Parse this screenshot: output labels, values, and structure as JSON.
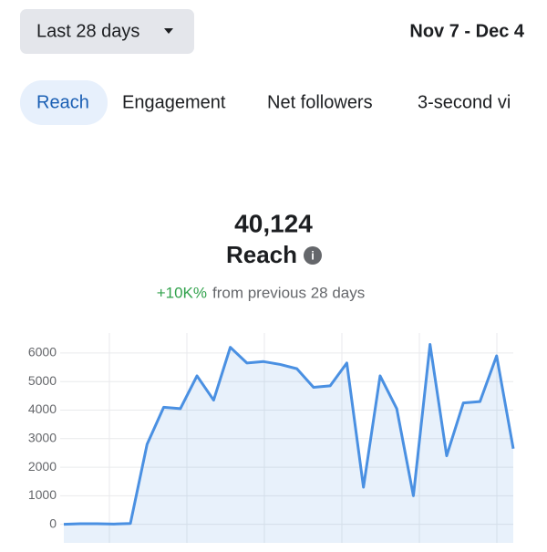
{
  "header": {
    "range_button": "Last 28 days",
    "date_range": "Nov 7 - Dec 4"
  },
  "tabs": [
    "Reach",
    "Engagement",
    "Net followers",
    "3-second vi"
  ],
  "summary": {
    "total": "40,124",
    "metric": "Reach",
    "change": "+10K%",
    "comparison": "from previous 28 days"
  },
  "chart_data": {
    "type": "area",
    "categories": [
      null,
      null,
      null,
      null,
      null,
      null,
      null,
      null,
      null,
      null,
      null,
      null,
      null,
      null,
      null,
      null,
      null,
      null,
      null,
      null,
      null,
      null,
      null,
      null,
      null,
      null,
      null,
      null
    ],
    "series": [
      {
        "name": "Reach",
        "color": "#4a90e2",
        "values": [
          0,
          20,
          20,
          10,
          30,
          2800,
          4100,
          4050,
          5200,
          4350,
          6200,
          5650,
          5700,
          5600,
          5450,
          4800,
          4850,
          5650,
          1300,
          5200,
          4050,
          1000,
          6300,
          2400,
          4250,
          4300,
          5900,
          2650
        ]
      }
    ],
    "ylim": [
      -650,
      6700
    ],
    "yticks": [
      0,
      1000,
      2000,
      3000,
      4000,
      5000,
      6000
    ],
    "grid": true
  }
}
